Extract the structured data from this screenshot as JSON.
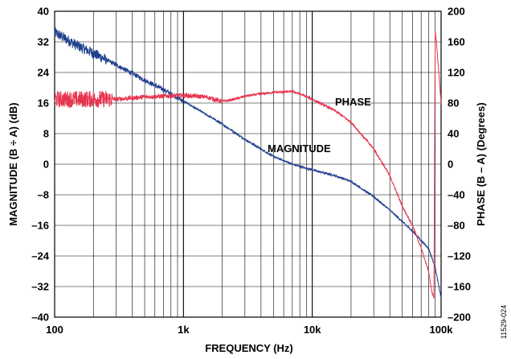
{
  "chart_data": {
    "type": "line",
    "title": "",
    "xlabel": "FREQUENCY (Hz)",
    "ylabel_left": "MAGNITUDE (B ÷ A) (dB)",
    "ylabel_right": "PHASE (B – A) (Degrees)",
    "x_scale": "log",
    "xlim": [
      100,
      100000
    ],
    "ylim_left": [
      -40,
      40
    ],
    "ylim_right": [
      -200,
      200
    ],
    "grid": true,
    "x_tick_labels": [
      "100",
      "1k",
      "10k",
      "100k"
    ],
    "x_tick_values": [
      100,
      1000,
      10000,
      100000
    ],
    "y_left_ticks": [
      "40",
      "32",
      "24",
      "16",
      "8",
      "0",
      "–8",
      "–16",
      "–24",
      "–32",
      "–40"
    ],
    "y_right_ticks": [
      "200",
      "160",
      "120",
      "80",
      "40",
      "0",
      "–40",
      "–80",
      "–120",
      "–160",
      "–200"
    ],
    "series": [
      {
        "name": "MAGNITUDE",
        "axis": "left",
        "color": "#1f3f8f",
        "x": [
          100,
          150,
          200,
          300,
          500,
          700,
          1000,
          1500,
          2000,
          3000,
          5000,
          7000,
          10000,
          15000,
          20000,
          30000,
          40000,
          50000,
          60000,
          70000,
          80000,
          90000,
          100000
        ],
        "y": [
          34.5,
          31,
          29,
          26,
          22,
          19.5,
          16.5,
          13,
          10.5,
          6.5,
          2,
          0,
          -1.5,
          -3,
          -4.5,
          -8.5,
          -12,
          -15,
          -17.5,
          -20,
          -22,
          -27,
          -35
        ]
      },
      {
        "name": "PHASE",
        "axis": "right",
        "color": "#e8344e",
        "x": [
          100,
          200,
          300,
          500,
          700,
          1000,
          1500,
          2000,
          2500,
          3000,
          4000,
          5000,
          7000,
          8000,
          10000,
          15000,
          20000,
          30000,
          40000,
          50000,
          60000,
          70000,
          80000,
          85000,
          88000,
          90000,
          92000,
          95000,
          100000
        ],
        "y": [
          85,
          85,
          85,
          88,
          89,
          90,
          88,
          82,
          85,
          89,
          92,
          94,
          95,
          92,
          85,
          70,
          55,
          20,
          -15,
          -55,
          -80,
          -110,
          -140,
          -168,
          -175,
          175,
          160,
          130,
          80
        ]
      }
    ],
    "annotations": [
      "PHASE",
      "MAGNITUDE"
    ],
    "figure_id": "11529-024"
  }
}
